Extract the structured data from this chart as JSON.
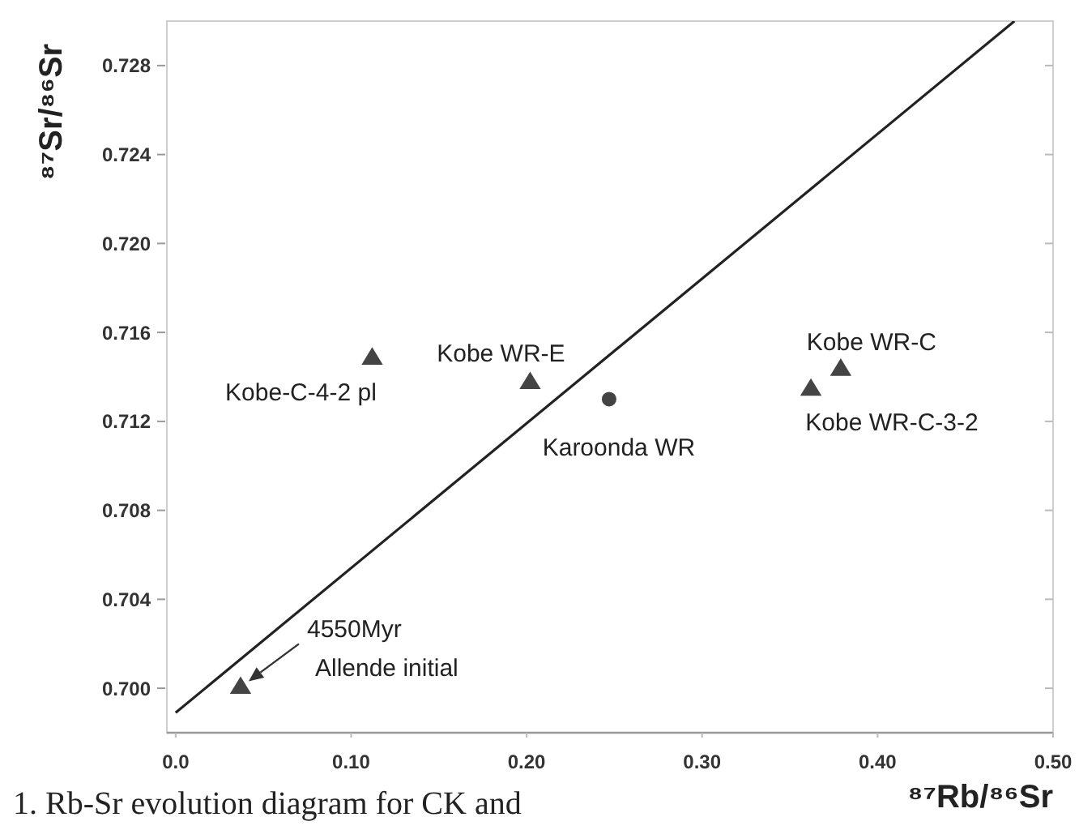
{
  "chart_data": {
    "type": "scatter",
    "xlabel": "⁸⁷Rb/⁸⁶Sr",
    "ylabel": "⁸⁷Sr/⁸⁶Sr",
    "xlim": [
      -0.005,
      0.5
    ],
    "ylim": [
      0.698,
      0.73
    ],
    "xticks": [
      {
        "value": 0,
        "label": "0.0"
      },
      {
        "value": 0.1,
        "label": "0.10"
      },
      {
        "value": 0.2,
        "label": "0.20"
      },
      {
        "value": 0.3,
        "label": "0.30"
      },
      {
        "value": 0.4,
        "label": "0.40"
      },
      {
        "value": 0.5,
        "label": "0.50"
      }
    ],
    "yticks": [
      {
        "value": 0.7,
        "label": "0.700"
      },
      0.704,
      0.708,
      0.712,
      0.716,
      {
        "value": 0.72,
        "label": "0.720"
      },
      0.724,
      0.728
    ],
    "series": [
      {
        "type": "line",
        "color": "#222222",
        "line_style": "solid",
        "marker": "none",
        "x": [
          0,
          0.478
        ],
        "values": [
          0.6989,
          0.73
        ]
      },
      {
        "color": "#444444",
        "marker": "triangle",
        "x": [
          0.112,
          0.202,
          0.362,
          0.379,
          0.037
        ],
        "values": [
          0.7149,
          0.7138,
          0.7135,
          0.7144,
          0.7001
        ]
      },
      {
        "color": "#444444",
        "marker": "circle",
        "x": [
          0.247
        ],
        "values": [
          0.713
        ]
      }
    ],
    "annotations": [
      {
        "text": "Kobe-C-4-2 pl",
        "x": 0.112,
        "y": 0.7149
      },
      {
        "text": "Kobe WR-E",
        "x": 0.202,
        "y": 0.7138
      },
      {
        "text": "Karoonda WR",
        "x": 0.247,
        "y": 0.713
      },
      {
        "text": "Kobe WR-C",
        "x": 0.379,
        "y": 0.7144
      },
      {
        "text": "Kobe WR-C-3-2",
        "x": 0.362,
        "y": 0.7135
      },
      "4550Myr",
      "Allende initial",
      "1. Rb-Sr evolution diagram for CK and"
    ]
  }
}
